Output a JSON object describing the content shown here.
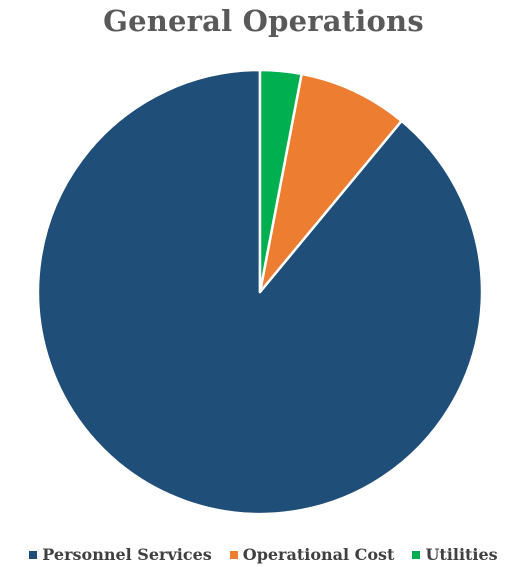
{
  "chart_data": {
    "type": "pie",
    "title": "General Operations",
    "categories": [
      "Personnel Services",
      "Operational Cost",
      "Utilities"
    ],
    "values": [
      89.0,
      8.0,
      3.0
    ],
    "colors": [
      "#1f4e79",
      "#ed7d31",
      "#00b050"
    ],
    "legend": "bottom",
    "start_angle": "12 o'clock",
    "direction": "clockwise"
  }
}
